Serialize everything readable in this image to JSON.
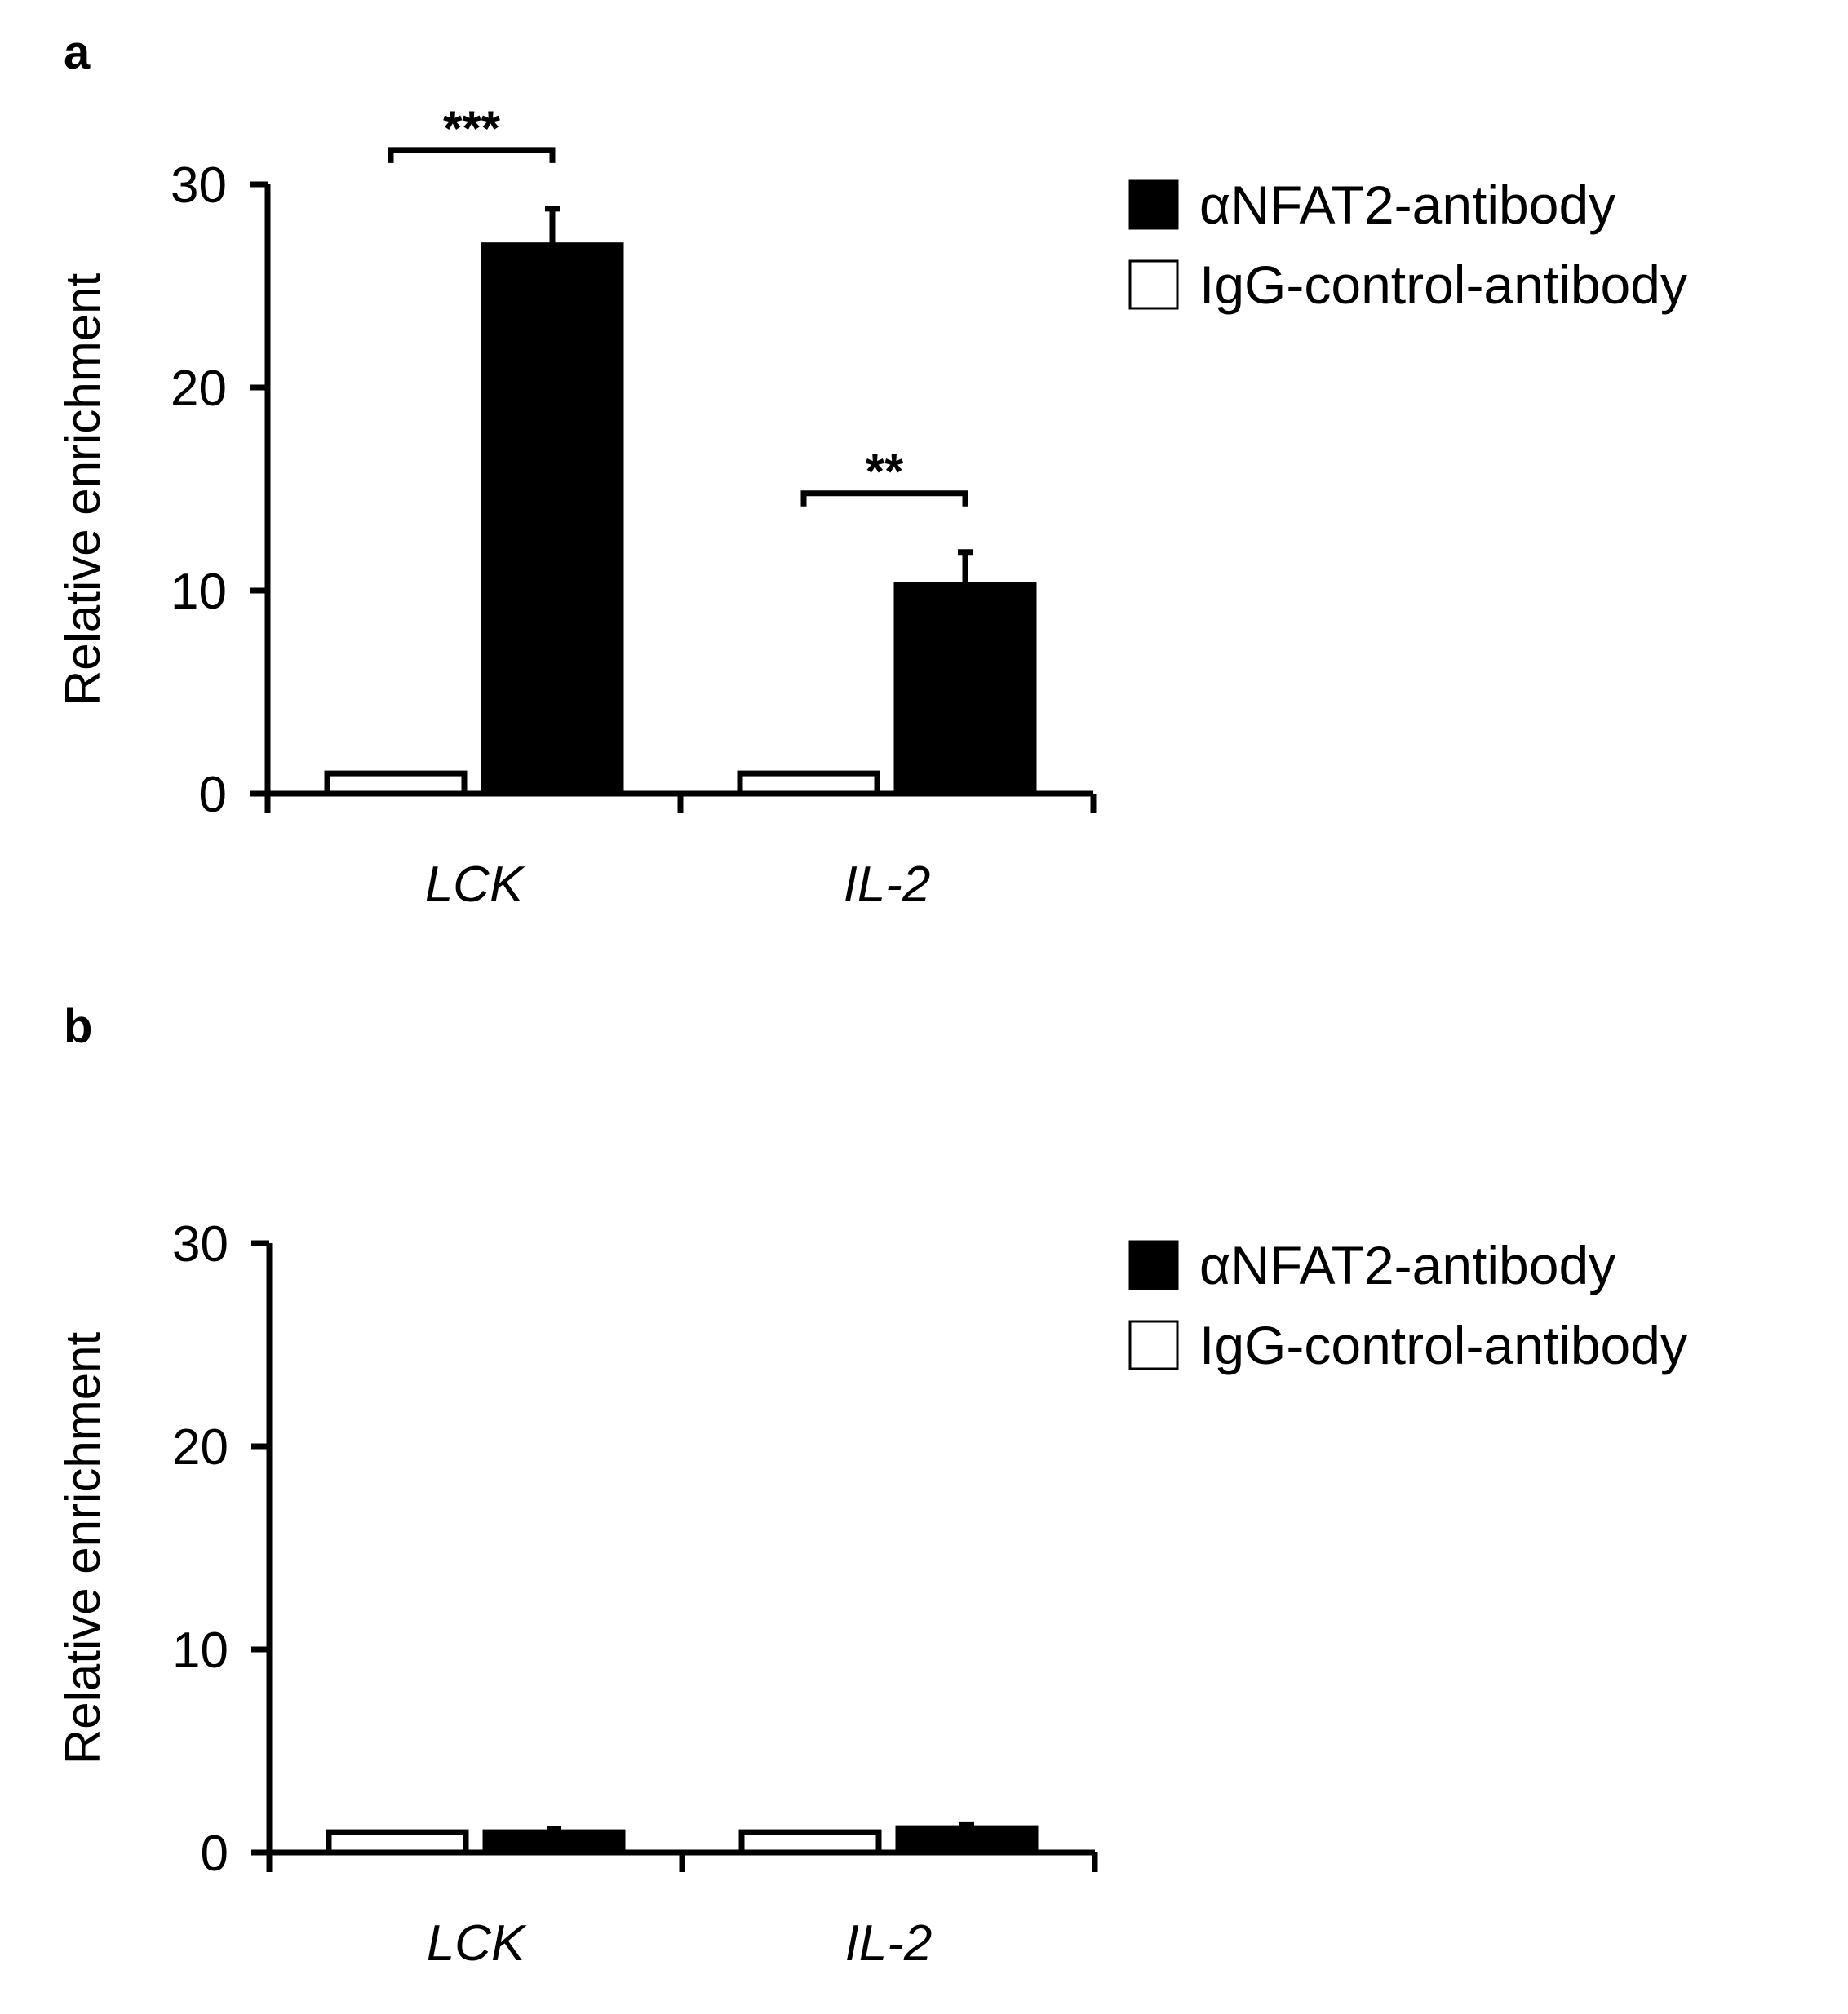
{
  "chart_data": [
    {
      "panel_label": "a",
      "type": "bar",
      "categories": [
        "LCK",
        "IL-2"
      ],
      "series": [
        {
          "name": "IgG-control-antibody",
          "values": [
            1,
            1
          ],
          "errors": [
            0,
            0
          ],
          "color": "#ffffff"
        },
        {
          "name": "αNFAT2-antibody",
          "values": [
            27,
            10.3
          ],
          "errors": [
            1.8,
            1.6
          ],
          "color": "#000000"
        }
      ],
      "legend_order": [
        "αNFAT2-antibody",
        "IgG-control-antibody"
      ],
      "legend_position": "top-right",
      "ylabel": "Relative enrichment",
      "xlabel": "",
      "ylim": [
        0,
        30
      ],
      "yticks": [
        0,
        10,
        20,
        30
      ],
      "grid": false,
      "significance": [
        {
          "category": "LCK",
          "label": "***"
        },
        {
          "category": "IL-2",
          "label": "**"
        }
      ]
    },
    {
      "panel_label": "b",
      "type": "bar",
      "categories": [
        "LCK",
        "IL-2"
      ],
      "series": [
        {
          "name": "IgG-control-antibody",
          "values": [
            1,
            1
          ],
          "errors": [
            0,
            0
          ],
          "color": "#ffffff"
        },
        {
          "name": "αNFAT2-antibody",
          "values": [
            1,
            1.2
          ],
          "errors": [
            0.15,
            0.15
          ],
          "color": "#000000"
        }
      ],
      "legend_order": [
        "αNFAT2-antibody",
        "IgG-control-antibody"
      ],
      "legend_position": "top-right",
      "ylabel": "Relative enrichment",
      "xlabel": "",
      "ylim": [
        0,
        30
      ],
      "yticks": [
        0,
        10,
        20,
        30
      ],
      "grid": false,
      "significance": []
    }
  ]
}
